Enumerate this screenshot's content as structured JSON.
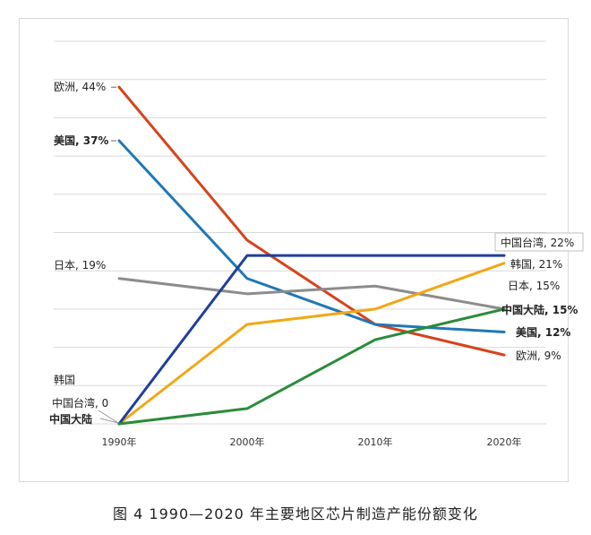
{
  "caption": "图 4 1990—2020 年主要地区芯片制造产能份额变化",
  "chart_data": {
    "type": "line",
    "x": [
      "1990年",
      "2000年",
      "2010年",
      "2020年"
    ],
    "ylim": [
      0,
      50
    ],
    "grid": true,
    "series": [
      {
        "name": "欧洲",
        "color": "#d4441c",
        "values": [
          44,
          24,
          13,
          9
        ],
        "start_label": "欧洲, 44%",
        "end_label": "欧洲, 9%",
        "bold": false
      },
      {
        "name": "美国",
        "color": "#1f78b4",
        "values": [
          37,
          19,
          13,
          12
        ],
        "start_label": "美国, 37%",
        "end_label": "美国, 12%",
        "bold": true
      },
      {
        "name": "日本",
        "color": "#8c8c8c",
        "values": [
          19,
          17,
          18,
          15
        ],
        "start_label": "日本, 19%",
        "end_label": "日本, 15%",
        "bold": false
      },
      {
        "name": "韩国",
        "color": "#f0a818",
        "values": [
          0,
          13,
          15,
          21
        ],
        "start_label": "韩国",
        "end_label": "韩国, 21%",
        "bold": false
      },
      {
        "name": "中国台湾",
        "color": "#1f3f99",
        "values": [
          0,
          22,
          22,
          22
        ],
        "start_label": "中国台湾, 0",
        "end_label": "中国台湾, 22%",
        "bold": false
      },
      {
        "name": "中国大陆",
        "color": "#2a8c3a",
        "values": [
          0,
          2,
          11,
          15
        ],
        "start_label": "中国大陆",
        "end_label": "中国大陆, 15%",
        "bold": true
      }
    ]
  }
}
